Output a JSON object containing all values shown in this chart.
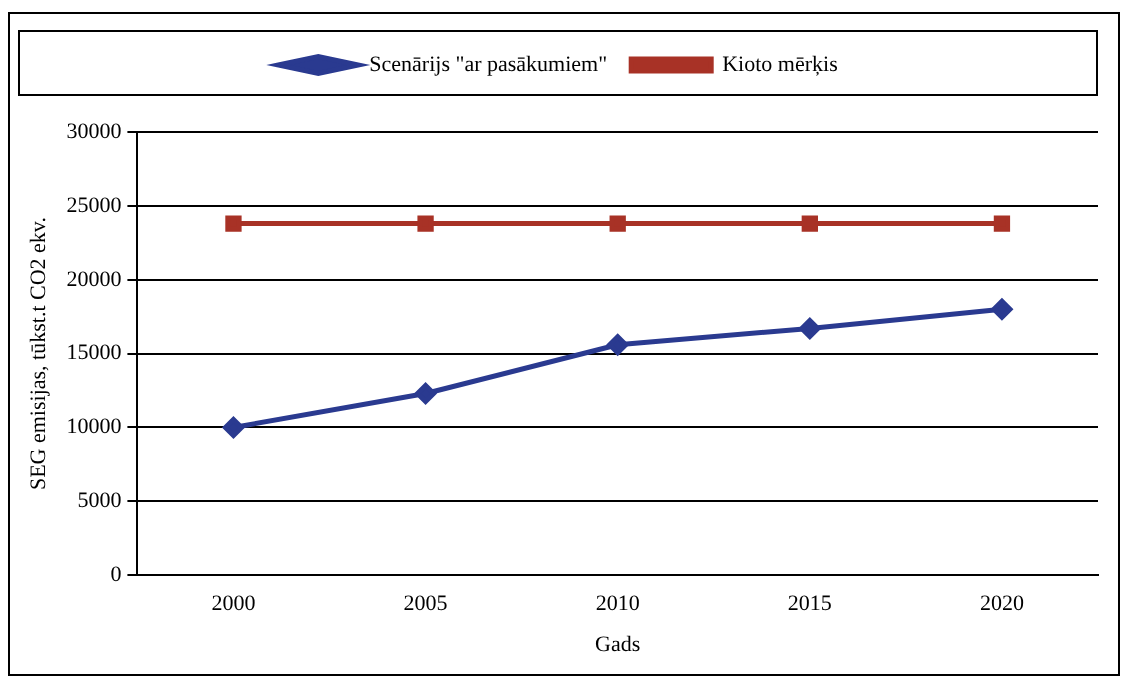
{
  "chart_data": {
    "type": "line",
    "xlabel": "Gads",
    "ylabel": "SEG emisijas, tūkst.t CO2 ekv.",
    "categories": [
      "2000",
      "2005",
      "2010",
      "2015",
      "2020"
    ],
    "series": [
      {
        "name": "Scenārijs \"ar pasākumiem\"",
        "color": "#2a3a90",
        "marker": "diamond",
        "values": [
          10000,
          12300,
          15600,
          16700,
          18000
        ]
      },
      {
        "name": "Kioto mērķis",
        "color": "#a83226",
        "marker": "square",
        "values": [
          23800,
          23800,
          23800,
          23800,
          23800
        ]
      }
    ],
    "ylim": [
      0,
      30000
    ],
    "yticks": [
      0,
      5000,
      10000,
      15000,
      20000,
      25000,
      30000
    ],
    "grid": "y",
    "legend": "top"
  }
}
